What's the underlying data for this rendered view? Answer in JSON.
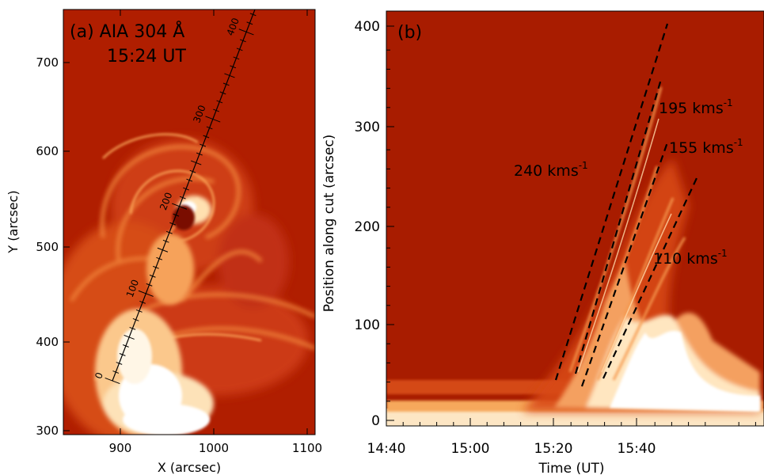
{
  "panel_a": {
    "label": "(a) AIA 304 Å",
    "time": "15:24 UT",
    "xlabel": "X (arcsec)",
    "ylabel": "Y (arcsec)",
    "xticks": [
      "900",
      "1000",
      "1100"
    ],
    "yticks": [
      "300",
      "400",
      "500",
      "600",
      "700"
    ],
    "cut_labels": [
      "0",
      "100",
      "200",
      "300",
      "400"
    ],
    "colors": {
      "background": "#b01e00",
      "bright": "#ffffff"
    }
  },
  "panel_b": {
    "label": "(b)",
    "xlabel": "Time (UT)",
    "ylabel": "Position along cut (arcsec)",
    "xticks": [
      "14:40",
      "15:00",
      "15:20",
      "15:40"
    ],
    "yticks": [
      "0",
      "100",
      "200",
      "300",
      "400"
    ],
    "speed_labels": [
      "240 kms",
      "195 kms",
      "155 kms",
      "110 kms"
    ],
    "speed_exp": "-1",
    "colors": {
      "background": "#a81c00",
      "bright": "#ffffff"
    }
  }
}
